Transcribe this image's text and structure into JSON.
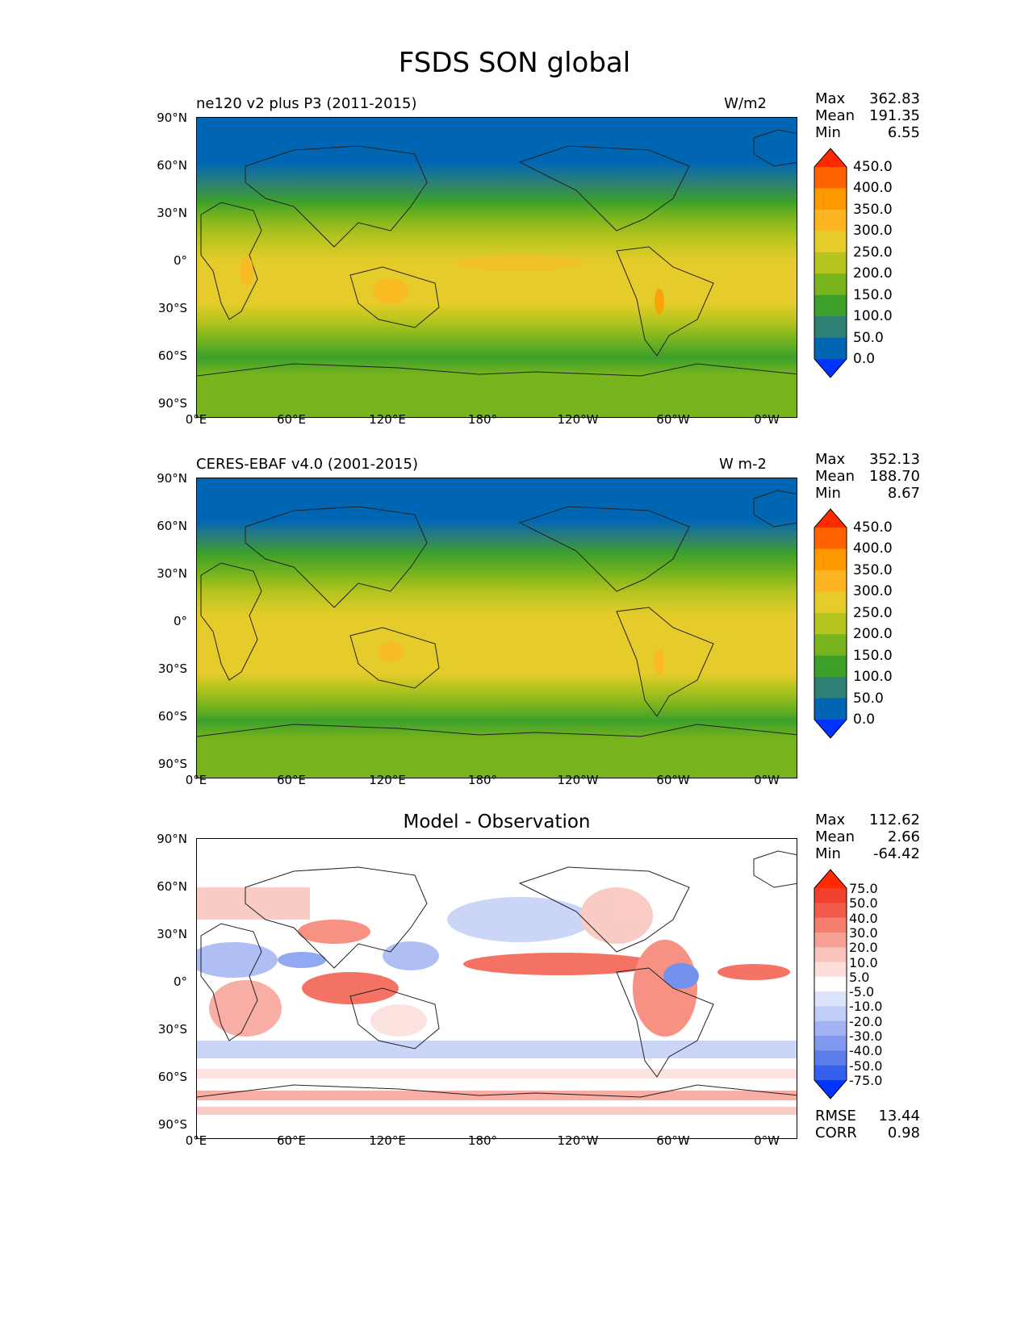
{
  "figure": {
    "title": "FSDS SON global"
  },
  "axes": {
    "lat_ticks": [
      "90°N",
      "60°N",
      "30°N",
      "0°",
      "30°S",
      "60°S",
      "90°S"
    ],
    "lon_ticks": [
      "0°E",
      "60°E",
      "120°E",
      "180°",
      "120°W",
      "60°W",
      "0°W"
    ]
  },
  "panels": [
    {
      "subtitle": "ne120 v2 plus P3 (2011-2015)",
      "units": "W/m2",
      "stats": {
        "max_label": "Max",
        "max": "362.83",
        "mean_label": "Mean",
        "mean": "191.35",
        "min_label": "Min",
        "min": "6.55"
      },
      "colorbar": {
        "levels": [
          "450.0",
          "400.0",
          "350.0",
          "300.0",
          "250.0",
          "200.0",
          "150.0",
          "100.0",
          "50.0",
          "0.0"
        ],
        "colors": [
          "#ff2a00",
          "#ff6400",
          "#ff9900",
          "#ffb521",
          "#e6cc2a",
          "#b5c41e",
          "#78b41e",
          "#3ca02b",
          "#2d8073",
          "#0066b3",
          "#0033ff"
        ]
      }
    },
    {
      "subtitle": "CERES-EBAF v4.0 (2001-2015)",
      "units": "W m-2",
      "stats": {
        "max_label": "Max",
        "max": "352.13",
        "mean_label": "Mean",
        "mean": "188.70",
        "min_label": "Min",
        "min": "8.67"
      },
      "colorbar": {
        "levels": [
          "450.0",
          "400.0",
          "350.0",
          "300.0",
          "250.0",
          "200.0",
          "150.0",
          "100.0",
          "50.0",
          "0.0"
        ],
        "colors": [
          "#ff2a00",
          "#ff6400",
          "#ff9900",
          "#ffb521",
          "#e6cc2a",
          "#b5c41e",
          "#78b41e",
          "#3ca02b",
          "#2d8073",
          "#0066b3",
          "#0033ff"
        ]
      }
    },
    {
      "subtitle": "Model - Observation",
      "stats": {
        "max_label": "Max",
        "max": "112.62",
        "mean_label": "Mean",
        "mean": "2.66",
        "min_label": "Min",
        "min": "-64.42"
      },
      "colorbar": {
        "levels": [
          "75.0",
          "50.0",
          "40.0",
          "30.0",
          "20.0",
          "10.0",
          "5.0",
          "-5.0",
          "-10.0",
          "-20.0",
          "-30.0",
          "-40.0",
          "-50.0",
          "-75.0"
        ],
        "colors": [
          "#ff2a00",
          "#f0402f",
          "#f25a4a",
          "#f57e6e",
          "#f7a195",
          "#f9c3bb",
          "#fcdfda",
          "#ffffff",
          "#dbe3fb",
          "#c1cef7",
          "#a2b4f3",
          "#8099ef",
          "#5c7eea",
          "#3361ee",
          "#0033ff"
        ]
      },
      "extra": {
        "rmse_label": "RMSE",
        "rmse": "13.44",
        "corr_label": "CORR",
        "corr": "0.98"
      }
    }
  ]
}
